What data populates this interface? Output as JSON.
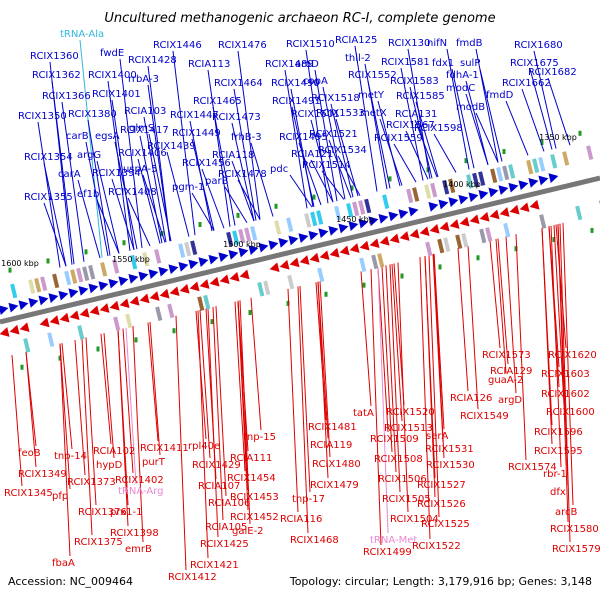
{
  "title": "Uncultured methanogenic archaeon RC-I, complete genome",
  "footer": {
    "accession": "Accession: NC_009464",
    "stats": "Topology: circular; Length: 3,179,916 bp; Genes: 3,148"
  },
  "colors": {
    "forward": "#0000cc",
    "reverse": "#dd0000",
    "trna": "#33b6dd",
    "trna_reverse": "#e888d0",
    "backbone": "#666666",
    "tick": "#229922"
  },
  "kbp_ticks": [
    "1350 kbp",
    "1400 kbp",
    "1450 kbp",
    "1500 kbp",
    "1550 kbp",
    "1600 kbp"
  ],
  "top_labels": [
    "tRNA-Ala",
    "fwdE",
    "RCIX1360",
    "RCIX1362",
    "RCIX1400",
    "RCIX1366",
    "RCIX1401",
    "RCIX1350",
    "RCIX1380",
    "carB",
    "egsA",
    "argG",
    "carA",
    "RCIX1354",
    "RCIX1394",
    "ef1b",
    "RCIX1355",
    "RCIX1406",
    "RCIX1408",
    "RCIX1417",
    "RCIX1428",
    "rrbA-3",
    "RCIA103",
    "glmS",
    "uspA-5",
    "RCIX1439",
    "RCIX1446",
    "RCIA113",
    "RCIX1447",
    "RCIX1449",
    "RCIX1456",
    "pgm-1",
    "parB",
    "RCIX1476",
    "RCIX1464",
    "RCIX1465",
    "RCIX1473",
    "RCIA118",
    "frhB-3",
    "RCIX1478",
    "RCIX1489",
    "RCIX1490",
    "RCIX1491",
    "RCIX1495",
    "pdc",
    "RCIX1510",
    "aroD",
    "copA",
    "RCIX1501",
    "RCIA121",
    "RCIX1514",
    "RCIX1518",
    "RCIX1533",
    "RCIX1521",
    "RCIX1534",
    "RCIA125",
    "thil-2",
    "RCIX1552",
    "metY",
    "metX",
    "RCIX1559",
    "RCIX1567",
    "RCIX130",
    "RCIX1581",
    "RCIX1583",
    "RCIX1585",
    "RCIA131",
    "RCIX1598",
    "nifN",
    "fdx1",
    "fmdB",
    "sulP",
    "fdhA-1",
    "modC",
    "modB",
    "fmdD",
    "RCIX1680",
    "RCIX1675",
    "RCIX1682",
    "RCIX1662"
  ],
  "bottom_labels": [
    "feoB",
    "RCIX1349",
    "RCIX1345",
    "tnp-14",
    "pfp",
    "RCIX1373",
    "RCIA102",
    "hypD",
    "RCIX1376",
    "RCIX1375",
    "fbaA",
    "RCIX1402",
    "prx1-1",
    "tRNA-Arg",
    "RCIX1398",
    "emrB",
    "RCIX1411",
    "purT",
    "rpl40e",
    "RCIX1429",
    "RCIA107",
    "RCIA106",
    "RCIA105",
    "RCIX1425",
    "RCIX1421",
    "RCIX1412",
    "tnp-15",
    "RCIA111",
    "RCIX1454",
    "RCIX1453",
    "RCIX1452",
    "galE-2",
    "RCIX1481",
    "RCIA119",
    "RCIX1480",
    "RCIX1479",
    "tnp-17",
    "RCIA116",
    "RCIX1468",
    "tatA",
    "RCIX1520",
    "RCIX1513",
    "RCIX1509",
    "RCIX1508",
    "RCIX1506",
    "RCIX1505",
    "RCIX1504",
    "tRNA-Met",
    "RCIX1499",
    "serA",
    "RCIX1531",
    "RCIX1530",
    "RCIX1527",
    "RCIX1526",
    "RCIX1525",
    "RCIX1522",
    "RCIA126",
    "RCIX1549",
    "RCIX1573",
    "RCIA129",
    "guaA-2",
    "argD",
    "RCIX1574",
    "RCIX1620",
    "RCIX1603",
    "RCIX1602",
    "RCIX1600",
    "RCIX1596",
    "RCIX1595",
    "rbr-1",
    "dfx",
    "arcB",
    "RCIX1580",
    "RCIX1579"
  ]
}
